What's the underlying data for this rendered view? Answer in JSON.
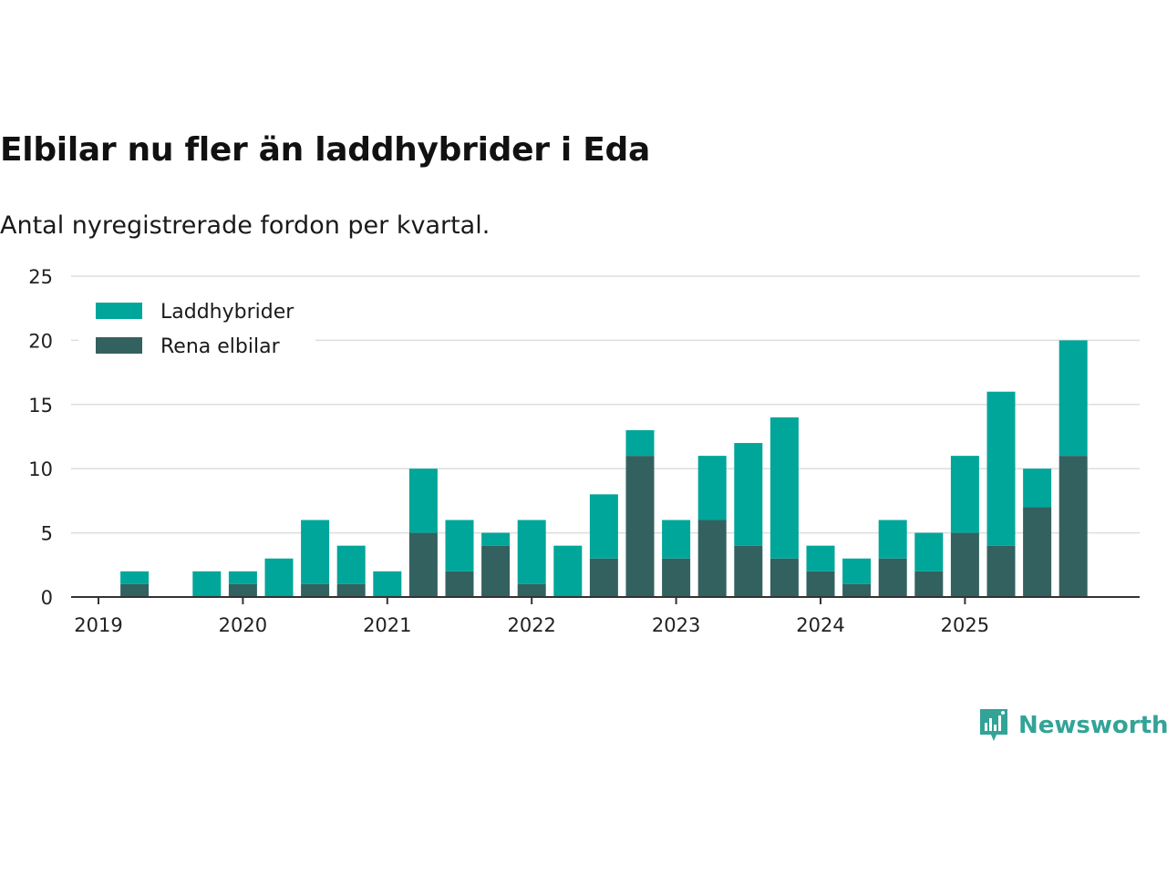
{
  "title": "Elbilar nu fler än laddhybrider i Eda",
  "subtitle": "Antal nyregistrerade fordon per kvartal.",
  "brand": "Newsworthy",
  "colors": {
    "laddhybrider": "#00a69a",
    "rena": "#336160",
    "grid": "#dddddd",
    "axis": "#333333"
  },
  "chart_data": {
    "type": "bar",
    "stacked": true,
    "categories": [
      "2019 Q1",
      "2019 Q2",
      "2019 Q3",
      "2019 Q4",
      "2020 Q1",
      "2020 Q2",
      "2020 Q3",
      "2020 Q4",
      "2021 Q1",
      "2021 Q2",
      "2021 Q3",
      "2021 Q4",
      "2022 Q1",
      "2022 Q2",
      "2022 Q3",
      "2022 Q4",
      "2023 Q1",
      "2023 Q2",
      "2023 Q3",
      "2023 Q4",
      "2024 Q1",
      "2024 Q2",
      "2024 Q3",
      "2024 Q4",
      "2025 Q1",
      "2025 Q2",
      "2025 Q3",
      "2025 Q4"
    ],
    "series": [
      {
        "name": "Rena elbilar",
        "color": "#336160",
        "values": [
          0,
          1,
          0,
          0,
          1,
          0,
          1,
          1,
          0,
          5,
          2,
          4,
          1,
          0,
          3,
          11,
          3,
          6,
          4,
          3,
          2,
          1,
          3,
          2,
          5,
          4,
          7,
          11
        ]
      },
      {
        "name": "Laddhybrider",
        "color": "#00a69a",
        "values": [
          0,
          1,
          0,
          2,
          1,
          3,
          5,
          3,
          2,
          5,
          4,
          1,
          5,
          4,
          5,
          2,
          3,
          5,
          8,
          11,
          2,
          2,
          3,
          3,
          6,
          12,
          3,
          9
        ]
      }
    ],
    "legend": [
      "Laddhybrider",
      "Rena elbilar"
    ],
    "legend_position": "top-left",
    "x_ticks": [
      "2019",
      "2020",
      "2021",
      "2022",
      "2023",
      "2024",
      "2025"
    ],
    "y_ticks": [
      0,
      5,
      10,
      15,
      20,
      25
    ],
    "ylim": [
      0,
      25
    ],
    "grid": true,
    "title": "Elbilar nu fler än laddhybrider i Eda",
    "xlabel": "",
    "ylabel": ""
  }
}
